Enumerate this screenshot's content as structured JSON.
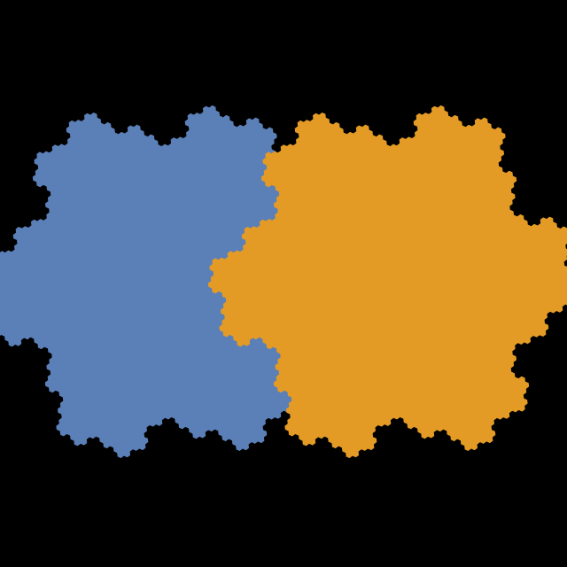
{
  "scene": {
    "background_color": "#000000",
    "fractal_type": "Gosper island (flowsnake boundary)",
    "recursion_depth": 4,
    "shapes": [
      {
        "name": "blue-fractal-island",
        "color": "#5b7fb7"
      },
      {
        "name": "orange-fractal-island",
        "color": "#e39b26"
      }
    ]
  }
}
